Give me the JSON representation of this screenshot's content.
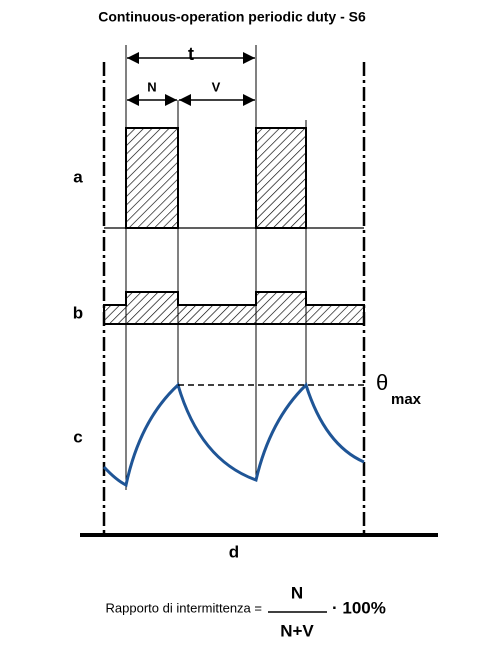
{
  "title": "Continuous-operation periodic duty - S6",
  "labels": {
    "t": "t",
    "n": "N",
    "v": "V",
    "a": "a",
    "b": "b",
    "c": "c",
    "theta": "θ",
    "max": "max",
    "d": "d"
  },
  "formula": {
    "text": "Rapporto di intermittenza =",
    "numerator": "N",
    "denominator": "N+V",
    "factor": "· 100%"
  }
}
